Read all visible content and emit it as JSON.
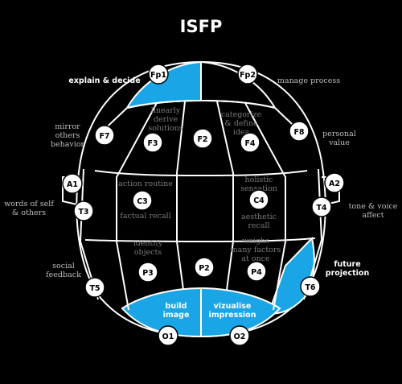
{
  "title": "ISFP",
  "colors": {
    "background": "#000000",
    "line": "#ffffff",
    "highlight": "#1aa5e6"
  },
  "nodes": {
    "Fp1": "Fp1",
    "Fp2": "Fp2",
    "F7": "F7",
    "F8": "F8",
    "F3": "F3",
    "F4": "F4",
    "F2": "F2",
    "A1": "A1",
    "A2": "A2",
    "T3": "T3",
    "T4": "T4",
    "C3": "C3",
    "C4": "C4",
    "P3": "P3",
    "P4": "P4",
    "P2": "P2",
    "T5": "T5",
    "T6": "T6",
    "O1": "O1",
    "O2": "O2"
  },
  "labels": {
    "explain_decide": "explain & decide",
    "manage_process": "manage process",
    "mirror": [
      "mirror",
      "others",
      "behavior"
    ],
    "personal_value": [
      "personal",
      "value"
    ],
    "linearly": [
      "linearly",
      "derive",
      "solutions"
    ],
    "categorize": [
      "categorize",
      "& define",
      "idea"
    ],
    "words_self": [
      "words of self",
      "& others"
    ],
    "tone_voice": [
      "tone & voice",
      "affect"
    ],
    "action_routine": "action routine",
    "factual_recall": "factual recall",
    "holistic": [
      "holistic",
      "sensation"
    ],
    "aesthetic": [
      "aesthetic",
      "recall"
    ],
    "identify": [
      "identify",
      "objects"
    ],
    "weighs": [
      "weighs",
      "many factors",
      "at once"
    ],
    "social_feedback": [
      "social",
      "feedback"
    ],
    "future_projection": [
      "future",
      "projection"
    ],
    "build_image": [
      "build",
      "image"
    ],
    "visualise": [
      "vizualise",
      "impression"
    ]
  }
}
